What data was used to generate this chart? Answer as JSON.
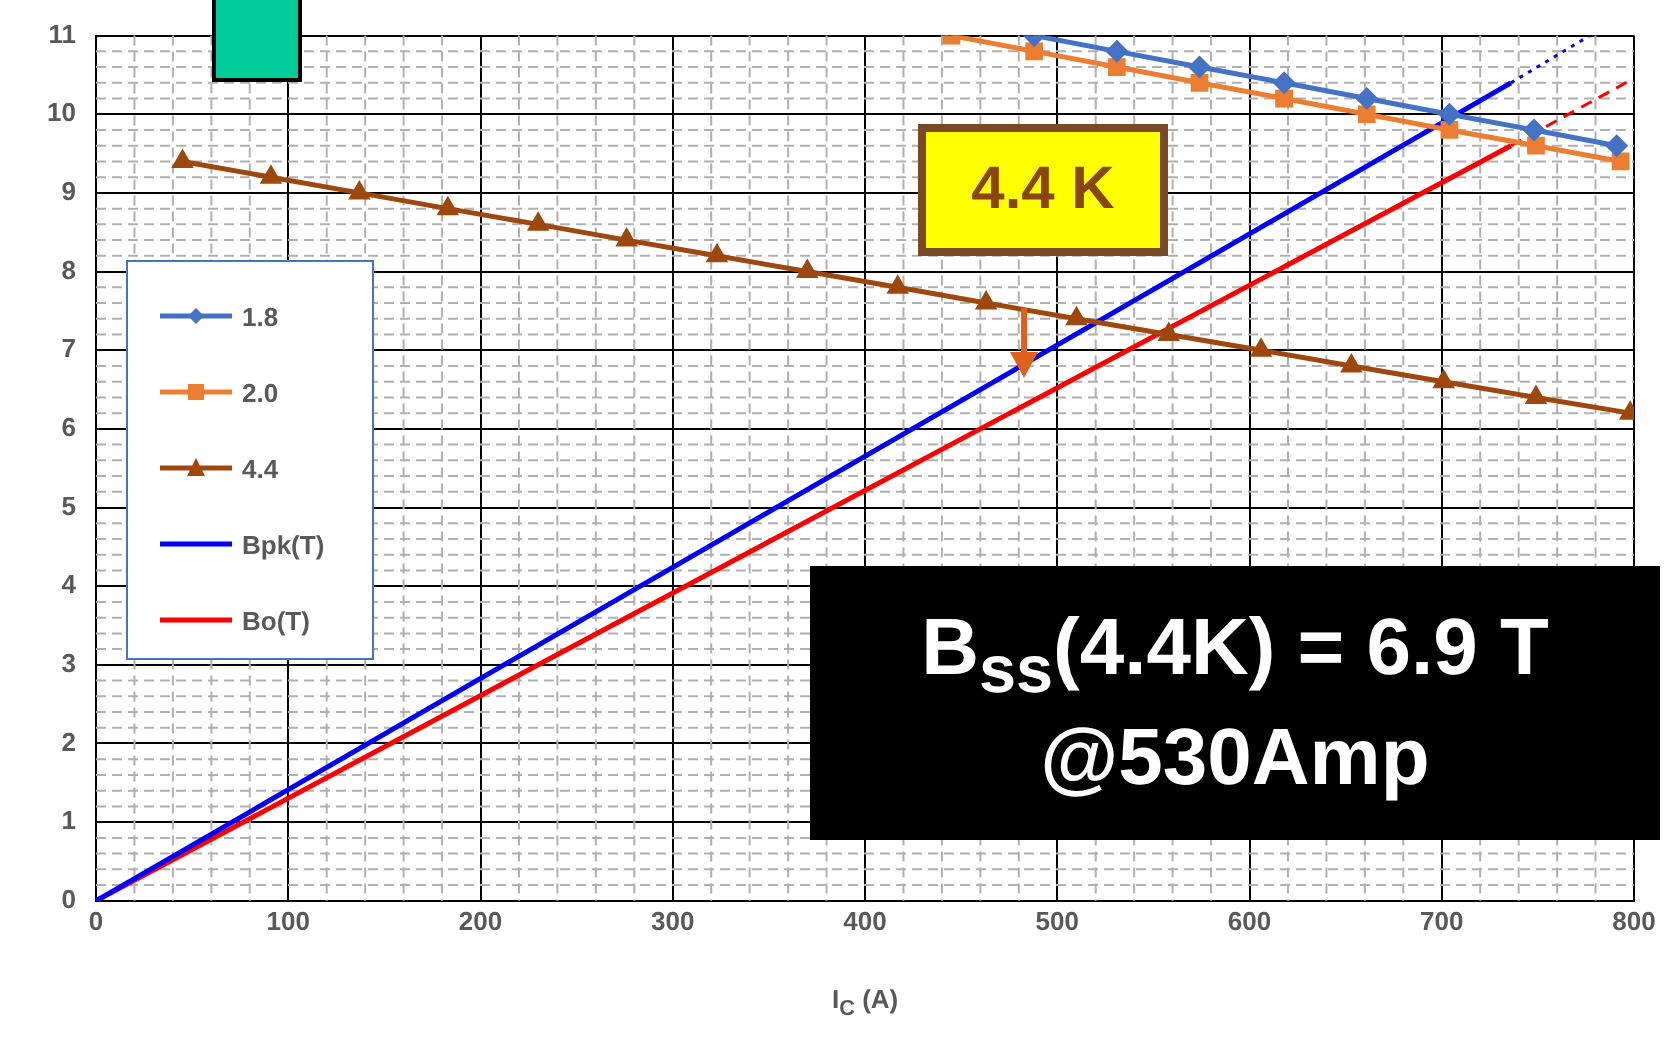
{
  "chart_data": {
    "type": "line",
    "xlabel": "I$_{C}$ (A)",
    "xlim": [
      0,
      800
    ],
    "xticks": [
      0,
      100,
      200,
      300,
      400,
      500,
      600,
      700,
      800
    ],
    "ylim": [
      0,
      11
    ],
    "yticks": [
      0,
      1,
      2,
      3,
      4,
      5,
      6,
      7,
      8,
      9,
      10,
      11
    ],
    "grid": true,
    "legend": "left",
    "series": [
      {
        "name": "1.8",
        "color": "#4472c4",
        "marker": "diamond",
        "x": [
          488,
          531,
          574,
          618,
          661,
          704,
          748,
          791
        ],
        "values": [
          11.0,
          10.8,
          10.6,
          10.4,
          10.2,
          10.0,
          9.8,
          9.6
        ]
      },
      {
        "name": "2.0",
        "color": "#ed7d31",
        "marker": "square",
        "x": [
          445,
          488,
          531,
          574,
          618,
          661,
          704,
          749,
          793
        ],
        "values": [
          11.0,
          10.8,
          10.6,
          10.4,
          10.2,
          10.0,
          9.8,
          9.6,
          9.4
        ]
      },
      {
        "name": "4.4",
        "color": "#9e480e",
        "marker": "triangle",
        "x": [
          45,
          91,
          137,
          183,
          230,
          276,
          323,
          370,
          417,
          463,
          510,
          558,
          606,
          653,
          701,
          749,
          798
        ],
        "values": [
          9.4,
          9.2,
          9.0,
          8.8,
          8.6,
          8.4,
          8.2,
          8.0,
          7.8,
          7.6,
          7.4,
          7.2,
          7.0,
          6.8,
          6.6,
          6.4,
          6.2
        ]
      },
      {
        "name": "Bpk(T)",
        "color": "#0000ff",
        "marker": "none",
        "x": [
          0,
          736
        ],
        "values": [
          0,
          10.4
        ]
      },
      {
        "color": "#0000ff",
        "marker": "none",
        "line_style": "dotted",
        "x": [
          736,
          777
        ],
        "values": [
          10.4,
          11.0
        ]
      },
      {
        "name": "Bo(T)",
        "color": "#ff0000",
        "marker": "none",
        "x": [
          0,
          736
        ],
        "values": [
          0,
          9.6
        ]
      },
      {
        "color": "#ff0000",
        "marker": "none",
        "line_style": "dashed",
        "x": [
          736,
          798
        ],
        "values": [
          9.6,
          10.43
        ]
      }
    ],
    "annotations": [
      "4.4 K",
      "B$_{ss}$(4.4K) = 6.9 T",
      "@530Amp"
    ]
  }
}
